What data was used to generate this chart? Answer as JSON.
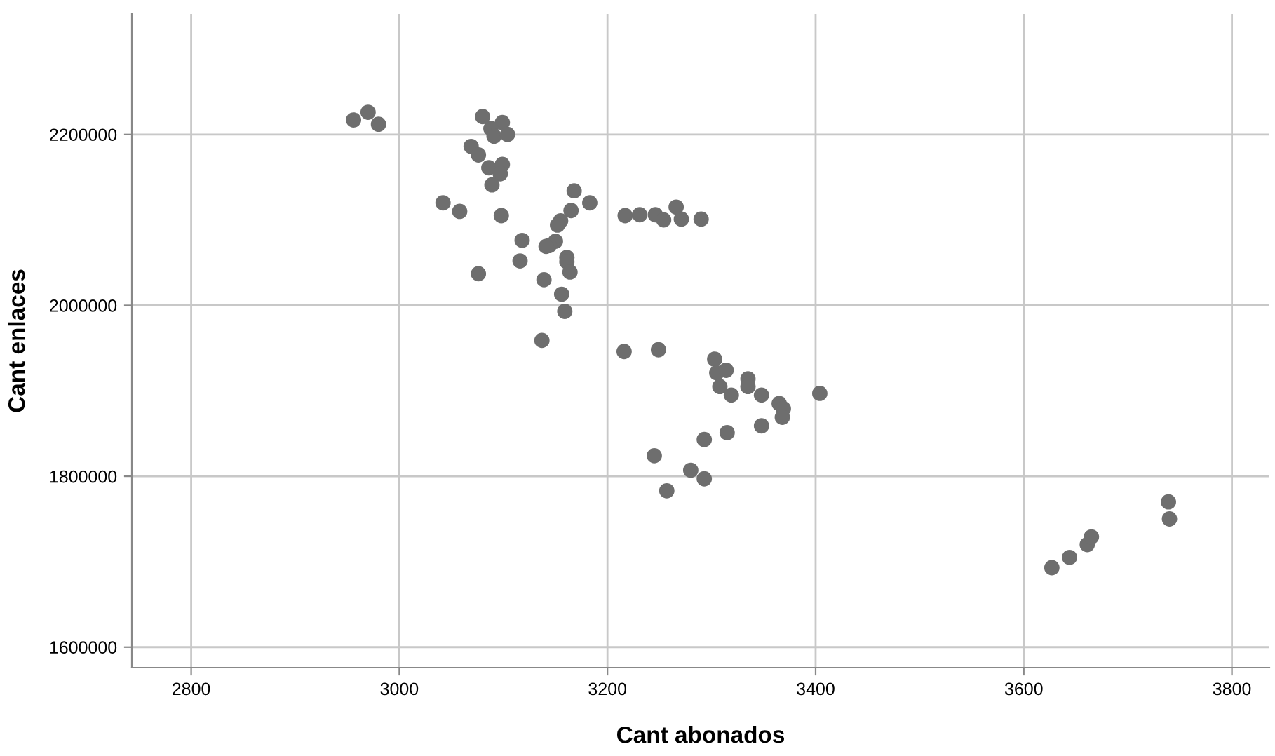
{
  "chart_data": {
    "type": "scatter",
    "xlabel": "Cant abonados",
    "ylabel": "Cant enlaces",
    "xlim": [
      2743,
      3836
    ],
    "ylim": [
      1576000,
      2341000
    ],
    "xticks": [
      2800,
      3000,
      3200,
      3400,
      3600,
      3800
    ],
    "yticks": [
      1600000,
      1800000,
      2000000,
      2200000
    ],
    "grid": true,
    "marker": "circle",
    "series": [
      {
        "color": "#6e6e6e",
        "x": [
          2956,
          2970,
          2980,
          3080,
          3099,
          3088,
          3091,
          3104,
          3069,
          3076,
          3086,
          3099,
          3097,
          3089,
          3168,
          3183,
          3165,
          3042,
          3058,
          3098,
          3217,
          3155,
          3152,
          3118,
          3150,
          3144,
          3141,
          3116,
          3161,
          3161,
          3164,
          3076,
          3139,
          3156,
          3159,
          3137,
          3216,
          3249,
          3303,
          3305,
          3314,
          3308,
          3319,
          3335,
          3335,
          3348,
          3404,
          3365,
          3369,
          3368,
          3348,
          3315,
          3293,
          3245,
          3280,
          3293,
          3257,
          3627,
          3644,
          3661,
          3665,
          3739,
          3740,
          3231,
          3246,
          3254,
          3266,
          3271,
          3290
        ],
        "values": [
          2217000,
          2226000,
          2212000,
          2221000,
          2214000,
          2207000,
          2198000,
          2200000,
          2186000,
          2176000,
          2161000,
          2165000,
          2154000,
          2141000,
          2134000,
          2120000,
          2111000,
          2120000,
          2110000,
          2105000,
          2105000,
          2099000,
          2094000,
          2076000,
          2075000,
          2070000,
          2069000,
          2052000,
          2056000,
          2051000,
          2039000,
          2037000,
          2030000,
          2013000,
          1993000,
          1959000,
          1946000,
          1948000,
          1937000,
          1921000,
          1924000,
          1905000,
          1895000,
          1914000,
          1905000,
          1895000,
          1897000,
          1885000,
          1879000,
          1869000,
          1859000,
          1851000,
          1843000,
          1824000,
          1807000,
          1797000,
          1783000,
          1693000,
          1705000,
          1720000,
          1729000,
          1770000,
          1750000,
          2106000,
          2106000,
          2100000,
          2115000,
          2101000,
          2101000
        ]
      }
    ]
  }
}
